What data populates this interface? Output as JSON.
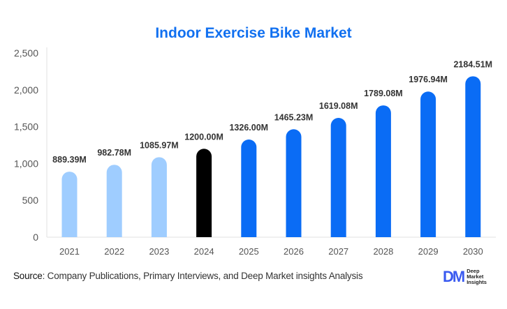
{
  "chart_data": {
    "type": "bar",
    "title": "Indoor Exercise Bike Market",
    "categories": [
      "2021",
      "2022",
      "2023",
      "2024",
      "2025",
      "2026",
      "2027",
      "2028",
      "2029",
      "2030"
    ],
    "values": [
      889.39,
      982.78,
      1085.97,
      1200.0,
      1326.0,
      1465.23,
      1619.08,
      1789.08,
      1976.94,
      2184.51
    ],
    "data_labels": [
      "889.39M",
      "982.78M",
      "1085.97M",
      "1200.00M",
      "1326.00M",
      "1465.23M",
      "1619.08M",
      "1789.08M",
      "1976.94M",
      "2184.51M"
    ],
    "bar_colors": [
      "#9fcdff",
      "#9fcdff",
      "#9fcdff",
      "#000000",
      "#0a6cf5",
      "#0a6cf5",
      "#0a6cf5",
      "#0a6cf5",
      "#0a6cf5",
      "#0a6cf5"
    ],
    "xlabel": "",
    "ylabel": "",
    "ylim": [
      0,
      2500
    ],
    "yticks": [
      "0",
      "500",
      "1,000",
      "1,500",
      "2,000",
      "2,500"
    ],
    "grid": false
  },
  "footer": {
    "source_label": "Source",
    "source_text": ": Company Publications, Primary Interviews, and Deep Market insights Analysis",
    "logo_text": "Deep Market Insights"
  }
}
